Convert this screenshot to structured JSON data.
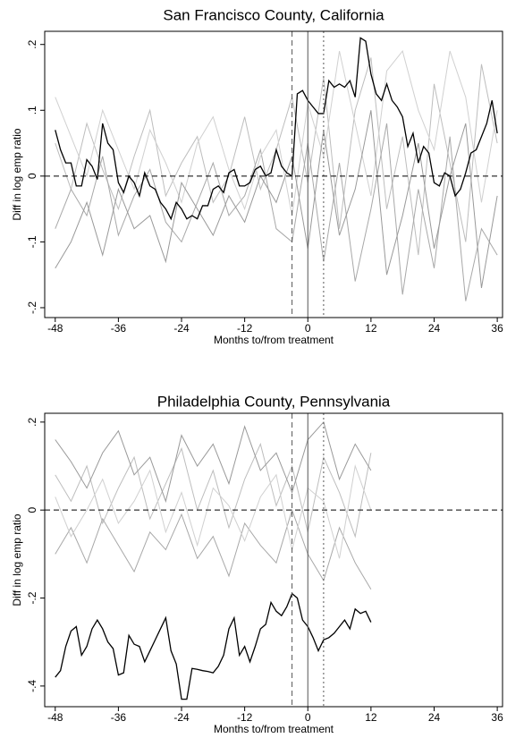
{
  "chart_data": [
    {
      "type": "line",
      "title": "San Francisco County, California",
      "x_label": "Months to/from treatment",
      "y_label": "Diff in log emp ratio",
      "xlim": [
        -50,
        37
      ],
      "ylim": [
        -0.215,
        0.22
      ],
      "xticks": [
        -48,
        -36,
        -24,
        -12,
        0,
        12,
        24,
        36
      ],
      "yticks": [
        {
          "value": -0.2,
          "label": "-.2"
        },
        {
          "value": -0.1,
          "label": "-.1"
        },
        0,
        {
          "value": 0.1,
          "label": ".1"
        },
        {
          "value": 0.2,
          "label": ".2"
        }
      ],
      "vlines": [
        -3,
        0,
        3
      ],
      "vline_styles": [
        "dashed",
        "solid",
        "dotted"
      ],
      "hline": 0,
      "hline_style": "dashed",
      "x": [
        -48,
        -47,
        -46,
        -45,
        -44,
        -43,
        -42,
        -41,
        -40,
        -39,
        -38,
        -37,
        -36,
        -35,
        -34,
        -33,
        -32,
        -31,
        -30,
        -29,
        -28,
        -27,
        -26,
        -25,
        -24,
        -23,
        -22,
        -21,
        -20,
        -19,
        -18,
        -17,
        -16,
        -15,
        -14,
        -13,
        -12,
        -11,
        -10,
        -9,
        -8,
        -7,
        -6,
        -5,
        -4,
        -3,
        -2,
        -1,
        0,
        1,
        2,
        3,
        4,
        5,
        6,
        7,
        8,
        9,
        10,
        11,
        12,
        13,
        14,
        15,
        16,
        17,
        18,
        19,
        20,
        21,
        22,
        23,
        24,
        25,
        26,
        27,
        28,
        29,
        30,
        31,
        32,
        33,
        34,
        35,
        36
      ],
      "series": [
        {
          "color": "#bdbdbd",
          "x": [
            -48,
            -45,
            -42,
            -39,
            -36,
            -33,
            -30,
            -27,
            -24,
            -21,
            -18,
            -15,
            -12,
            -9,
            -6,
            -3,
            0,
            3,
            6,
            9,
            12,
            15,
            18,
            21,
            24,
            27,
            30,
            33,
            36
          ],
          "values": [
            0.05,
            -0.02,
            0.08,
            0.01,
            -0.05,
            0.03,
            0.1,
            -0.03,
            0.02,
            0.06,
            -0.04,
            0.0,
            0.09,
            -0.02,
            0.04,
            0.12,
            -0.01,
            0.15,
            -0.08,
            0.1,
            0.18,
            -0.05,
            0.06,
            -0.12,
            0.14,
            0.02,
            -0.1,
            0.17,
            0.05
          ]
        },
        {
          "color": "#a8a8a8",
          "x": [
            -48,
            -45,
            -42,
            -39,
            -36,
            -33,
            -30,
            -27,
            -24,
            -21,
            -18,
            -15,
            -12,
            -9,
            -6,
            -3,
            0,
            3,
            6,
            9,
            12,
            15,
            18,
            21,
            24,
            27,
            30,
            33,
            36
          ],
          "values": [
            -0.08,
            -0.02,
            -0.06,
            0.03,
            -0.09,
            -0.03,
            0.01,
            -0.07,
            -0.1,
            -0.04,
            0.02,
            -0.06,
            -0.03,
            0.04,
            -0.08,
            -0.1,
            0.05,
            -0.13,
            0.02,
            -0.16,
            -0.05,
            0.08,
            -0.18,
            -0.02,
            -0.14,
            0.06,
            -0.19,
            -0.08,
            -0.12
          ]
        },
        {
          "color": "#d0d0d0",
          "x": [
            -48,
            -45,
            -42,
            -39,
            -36,
            -33,
            -30,
            -27,
            -24,
            -21,
            -18,
            -15,
            -12,
            -9,
            -6,
            -3,
            0,
            3,
            6,
            9,
            12,
            15,
            18,
            21,
            24,
            27,
            30,
            33,
            36
          ],
          "values": [
            0.12,
            0.06,
            0.0,
            0.1,
            0.04,
            -0.02,
            0.07,
            0.02,
            -0.04,
            0.05,
            0.09,
            0.01,
            -0.05,
            0.03,
            0.07,
            -0.06,
            0.11,
            0.03,
            0.19,
            0.08,
            -0.03,
            0.16,
            0.19,
            0.1,
            0.04,
            0.19,
            0.12,
            -0.04,
            0.1
          ]
        },
        {
          "color": "#999999",
          "x": [
            -48,
            -45,
            -42,
            -39,
            -36,
            -33,
            -30,
            -27,
            -24,
            -21,
            -18,
            -15,
            -12,
            -9,
            -6,
            -3,
            0,
            3,
            6,
            9,
            12,
            15,
            18,
            21,
            24,
            27,
            30,
            33,
            36
          ],
          "values": [
            -0.14,
            -0.1,
            -0.04,
            -0.12,
            -0.02,
            -0.08,
            -0.06,
            -0.13,
            -0.01,
            -0.05,
            -0.09,
            -0.03,
            -0.07,
            0.0,
            -0.04,
            0.03,
            -0.11,
            0.07,
            -0.09,
            -0.02,
            0.1,
            -0.15,
            -0.06,
            0.05,
            -0.11,
            0.0,
            0.08,
            -0.17,
            -0.03
          ]
        },
        {
          "color": "#000000",
          "values": [
            0.07,
            0.04,
            0.02,
            0.02,
            -0.015,
            -0.015,
            0.025,
            0.015,
            -0.005,
            0.08,
            0.05,
            0.04,
            -0.01,
            -0.025,
            0.0,
            -0.01,
            -0.03,
            0.005,
            -0.015,
            -0.02,
            -0.04,
            -0.05,
            -0.065,
            -0.04,
            -0.05,
            -0.065,
            -0.06,
            -0.065,
            -0.045,
            -0.045,
            -0.02,
            -0.015,
            -0.025,
            0.005,
            0.01,
            -0.015,
            -0.015,
            -0.01,
            0.01,
            0.015,
            0.0,
            0.005,
            0.04,
            0.015,
            0.005,
            0.0,
            0.125,
            0.13,
            0.115,
            0.105,
            0.095,
            0.095,
            0.145,
            0.135,
            0.14,
            0.135,
            0.145,
            0.12,
            0.21,
            0.205,
            0.155,
            0.125,
            0.115,
            0.14,
            0.115,
            0.105,
            0.09,
            0.045,
            0.065,
            0.02,
            0.045,
            0.035,
            -0.01,
            -0.015,
            0.005,
            0.0,
            -0.03,
            -0.02,
            0.005,
            0.035,
            0.04,
            0.06,
            0.08,
            0.115,
            0.065
          ]
        }
      ]
    },
    {
      "type": "line",
      "title": "Philadelphia County, Pennsylvania",
      "x_label": "Months to/from treatment",
      "y_label": "Diff in log emp ratio",
      "xlim": [
        -50,
        37
      ],
      "ylim": [
        -0.447,
        0.22
      ],
      "xticks": [
        -48,
        -36,
        -24,
        -12,
        0,
        12,
        24,
        36
      ],
      "yticks": [
        {
          "value": -0.4,
          "label": "-.4"
        },
        {
          "value": -0.2,
          "label": "-.2"
        },
        0,
        {
          "value": 0.2,
          "label": ".2"
        }
      ],
      "vlines": [
        -3,
        0,
        3
      ],
      "vline_styles": [
        "dashed",
        "solid",
        "dotted"
      ],
      "hline": 0,
      "hline_style": "dashed",
      "x": [
        -48,
        -47,
        -46,
        -45,
        -44,
        -43,
        -42,
        -41,
        -40,
        -39,
        -38,
        -37,
        -36,
        -35,
        -34,
        -33,
        -32,
        -31,
        -30,
        -29,
        -28,
        -27,
        -26,
        -25,
        -24,
        -23,
        -22,
        -21,
        -20,
        -19,
        -18,
        -17,
        -16,
        -15,
        -14,
        -13,
        -12,
        -11,
        -10,
        -9,
        -8,
        -7,
        -6,
        -5,
        -4,
        -3,
        -2,
        -1,
        0,
        1,
        2,
        3,
        4,
        5,
        6,
        7,
        8,
        9,
        10,
        11,
        12
      ],
      "series": [
        {
          "color": "#bdbdbd",
          "x": [
            -48,
            -45,
            -42,
            -39,
            -36,
            -33,
            -30,
            -27,
            -24,
            -21,
            -18,
            -15,
            -12,
            -9,
            -6,
            -3,
            0,
            3,
            6,
            9,
            12
          ],
          "values": [
            0.08,
            0.02,
            0.1,
            -0.03,
            0.05,
            0.12,
            -0.02,
            0.06,
            0.14,
            0.0,
            0.09,
            -0.04,
            0.07,
            0.15,
            0.01,
            0.1,
            -0.05,
            0.12,
            0.04,
            -0.06,
            0.13
          ]
        },
        {
          "color": "#a8a8a8",
          "x": [
            -48,
            -45,
            -42,
            -39,
            -36,
            -33,
            -30,
            -27,
            -24,
            -21,
            -18,
            -15,
            -12,
            -9,
            -6,
            -3,
            0,
            3,
            6,
            9,
            12
          ],
          "values": [
            -0.1,
            -0.04,
            -0.12,
            -0.02,
            -0.08,
            -0.14,
            -0.05,
            -0.09,
            -0.01,
            -0.11,
            -0.06,
            -0.15,
            -0.03,
            -0.08,
            -0.12,
            0.0,
            -0.1,
            -0.16,
            -0.04,
            -0.12,
            -0.18
          ]
        },
        {
          "color": "#d0d0d0",
          "x": [
            -48,
            -45,
            -42,
            -39,
            -36,
            -33,
            -30,
            -27,
            -24,
            -21,
            -18,
            -15,
            -12,
            -9,
            -6,
            -3,
            0,
            3,
            6,
            9,
            12
          ],
          "values": [
            0.03,
            -0.06,
            0.0,
            0.07,
            -0.03,
            0.02,
            0.09,
            -0.05,
            0.04,
            -0.08,
            0.05,
            0.01,
            -0.07,
            0.03,
            0.08,
            -0.09,
            0.05,
            0.02,
            -0.11,
            0.1,
            0.0
          ]
        },
        {
          "color": "#999999",
          "x": [
            -48,
            -45,
            -42,
            -39,
            -36,
            -33,
            -30,
            -27,
            -24,
            -21,
            -18,
            -15,
            -12,
            -9,
            -6,
            -3,
            0,
            3,
            6,
            9,
            12
          ],
          "values": [
            0.16,
            0.11,
            0.05,
            0.13,
            0.18,
            0.08,
            0.12,
            0.02,
            0.17,
            0.1,
            0.15,
            0.06,
            0.19,
            0.09,
            0.13,
            0.04,
            0.16,
            0.2,
            0.07,
            0.15,
            0.09
          ]
        },
        {
          "color": "#000000",
          "values": [
            -0.38,
            -0.365,
            -0.31,
            -0.275,
            -0.265,
            -0.33,
            -0.31,
            -0.27,
            -0.25,
            -0.27,
            -0.3,
            -0.315,
            -0.375,
            -0.37,
            -0.285,
            -0.305,
            -0.31,
            -0.345,
            -0.32,
            -0.295,
            -0.27,
            -0.245,
            -0.32,
            -0.35,
            -0.43,
            -0.43,
            -0.36,
            -0.362,
            -0.365,
            -0.367,
            -0.37,
            -0.355,
            -0.33,
            -0.27,
            -0.245,
            -0.33,
            -0.31,
            -0.345,
            -0.31,
            -0.27,
            -0.26,
            -0.21,
            -0.23,
            -0.24,
            -0.22,
            -0.19,
            -0.2,
            -0.25,
            -0.265,
            -0.29,
            -0.32,
            -0.295,
            -0.29,
            -0.28,
            -0.265,
            -0.25,
            -0.27,
            -0.225,
            -0.235,
            -0.23,
            -0.255
          ]
        }
      ]
    }
  ]
}
